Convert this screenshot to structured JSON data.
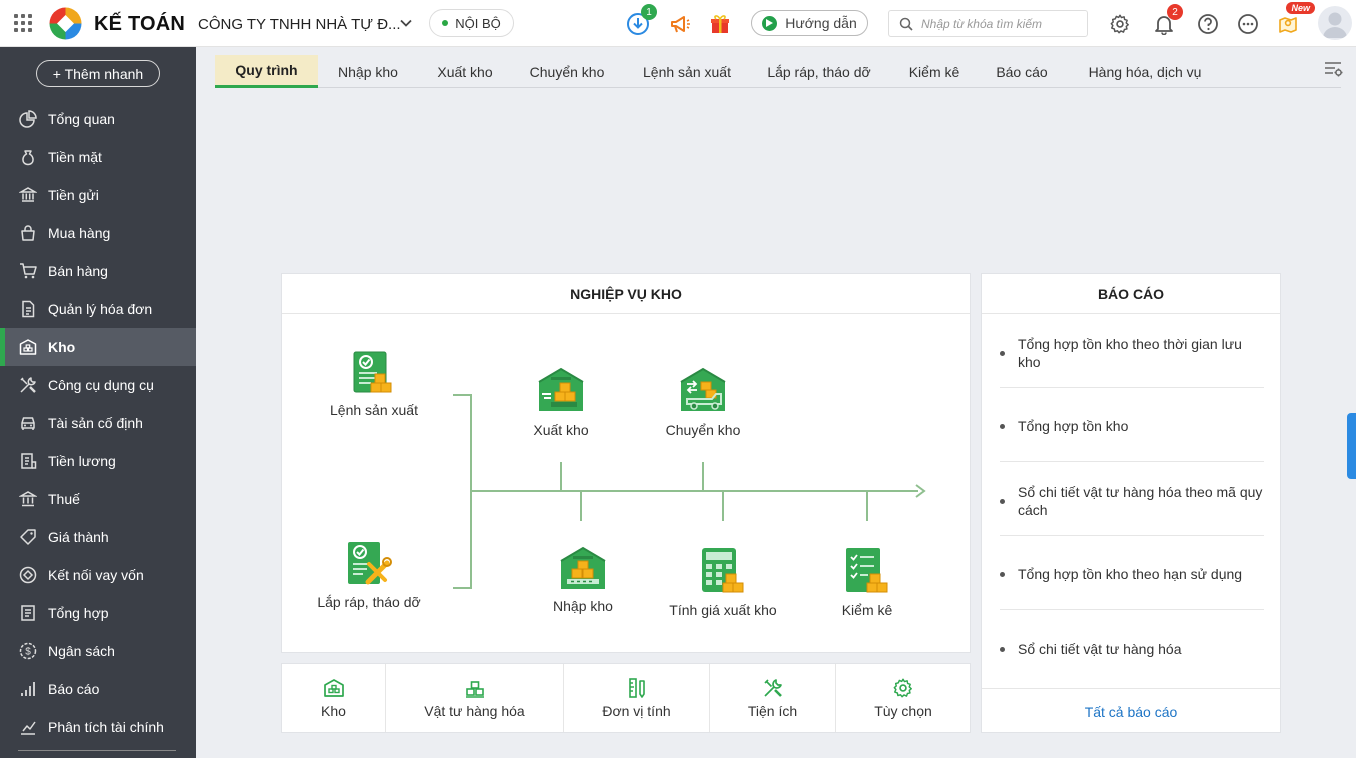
{
  "header": {
    "brand": "KẾ TOÁN",
    "company": "CÔNG TY TNHH NHÀ TỰ Đ...",
    "env": "NỘI BỘ",
    "download_badge": "1",
    "notification_badge": "2",
    "guide_label": "Hướng dẫn",
    "search_placeholder": "Nhập từ khóa tìm kiếm",
    "new_label": "New"
  },
  "sidebar": {
    "add_quick": "+ Thêm nhanh",
    "items": [
      {
        "label": "Tổng quan",
        "icon": "chart-pie-icon"
      },
      {
        "label": "Tiền mặt",
        "icon": "money-bag-icon"
      },
      {
        "label": "Tiền gửi",
        "icon": "bank-icon"
      },
      {
        "label": "Mua hàng",
        "icon": "shopping-bag-icon"
      },
      {
        "label": "Bán hàng",
        "icon": "cart-icon"
      },
      {
        "label": "Quản lý hóa đơn",
        "icon": "invoice-icon"
      },
      {
        "label": "Kho",
        "icon": "warehouse-icon"
      },
      {
        "label": "Công cụ dụng cụ",
        "icon": "tools-icon"
      },
      {
        "label": "Tài sản cố định",
        "icon": "car-icon"
      },
      {
        "label": "Tiền lương",
        "icon": "payroll-icon"
      },
      {
        "label": "Thuế",
        "icon": "tax-icon"
      },
      {
        "label": "Giá thành",
        "icon": "price-tag-icon"
      },
      {
        "label": "Kết nối vay vốn",
        "icon": "loan-icon"
      },
      {
        "label": "Tổng hợp",
        "icon": "summary-icon"
      },
      {
        "label": "Ngân sách",
        "icon": "budget-icon"
      },
      {
        "label": "Báo cáo",
        "icon": "bar-chart-icon"
      },
      {
        "label": "Phân tích tài chính",
        "icon": "analytics-icon"
      }
    ],
    "active_index": 6
  },
  "tabs": [
    "Quy trình",
    "Nhập kho",
    "Xuất kho",
    "Chuyển kho",
    "Lệnh sản xuất",
    "Lắp ráp, tháo dỡ",
    "Kiểm kê",
    "Báo cáo",
    "Hàng hóa, dịch vụ"
  ],
  "flow": {
    "title": "NGHIỆP VỤ KHO",
    "nodes": {
      "lenh_san_xuat": "Lệnh sản xuất",
      "lap_rap": "Lắp ráp, tháo dỡ",
      "xuat_kho": "Xuất kho",
      "chuyen_kho": "Chuyển kho",
      "nhap_kho": "Nhập kho",
      "tinh_gia": "Tính giá xuất kho",
      "kiem_ke": "Kiểm kê"
    }
  },
  "quick": [
    {
      "label": "Kho",
      "icon": "warehouse-icon"
    },
    {
      "label": "Vật tư hàng hóa",
      "icon": "boxes-icon"
    },
    {
      "label": "Đơn vị tính",
      "icon": "ruler-icon"
    },
    {
      "label": "Tiện ích",
      "icon": "wrench-icon"
    },
    {
      "label": "Tùy chọn",
      "icon": "gear-icon"
    }
  ],
  "reports": {
    "title": "BÁO CÁO",
    "items": [
      "Tổng hợp tồn kho theo thời gian lưu kho",
      "Tổng hợp tồn kho",
      "Sổ chi tiết vật tư hàng hóa theo mã quy cách",
      "Tổng hợp tồn kho theo hạn sử dụng",
      "Sổ chi tiết vật tư hàng hóa"
    ],
    "all_link": "Tất cả báo cáo"
  },
  "colors": {
    "sidebar_bg": "#3b3f47",
    "accent_green": "#2fa84f",
    "link_blue": "#1d74c5",
    "badge_red": "#e8392b"
  }
}
